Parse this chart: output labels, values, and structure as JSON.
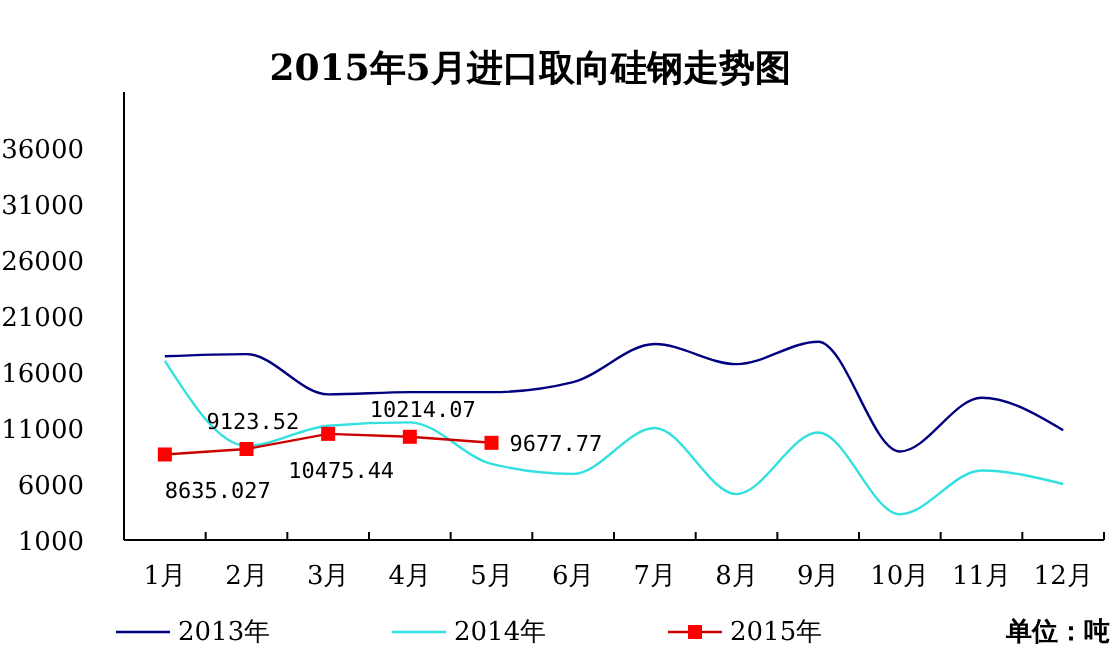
{
  "chart_data": {
    "type": "line",
    "title": "2015年5月进口取向硅钢走势图",
    "categories": [
      "1月",
      "2月",
      "3月",
      "4月",
      "5月",
      "6月",
      "7月",
      "8月",
      "9月",
      "10月",
      "11月",
      "12月"
    ],
    "series": [
      {
        "name": "2013年",
        "color": "#000080",
        "values": [
          17400,
          17600,
          14000,
          14200,
          14200,
          15100,
          18500,
          16700,
          18700,
          8900,
          13700,
          10800
        ]
      },
      {
        "name": "2014年",
        "color": "#33e0e0",
        "values": [
          17000,
          9400,
          11200,
          11500,
          7800,
          6900,
          11000,
          5100,
          10600,
          3300,
          7200,
          6000
        ]
      },
      {
        "name": "2015年",
        "color": "#cc0000",
        "values": [
          8635.027,
          9123.52,
          10475.44,
          10214.07,
          9677.77,
          null,
          null,
          null,
          null,
          null,
          null,
          null
        ],
        "marker": "square",
        "data_labels": true,
        "value_labels": [
          "8635.027",
          "9123.52",
          "10475.44",
          "10214.07",
          "9677.77",
          null,
          null,
          null,
          null,
          null,
          null,
          null
        ]
      }
    ],
    "ylim": [
      1000,
      41000
    ],
    "yticks": [
      1000,
      6000,
      11000,
      16000,
      21000,
      26000,
      31000,
      36000
    ],
    "grid": false,
    "legend": "bottom",
    "annotations": [
      "单位：吨"
    ]
  }
}
